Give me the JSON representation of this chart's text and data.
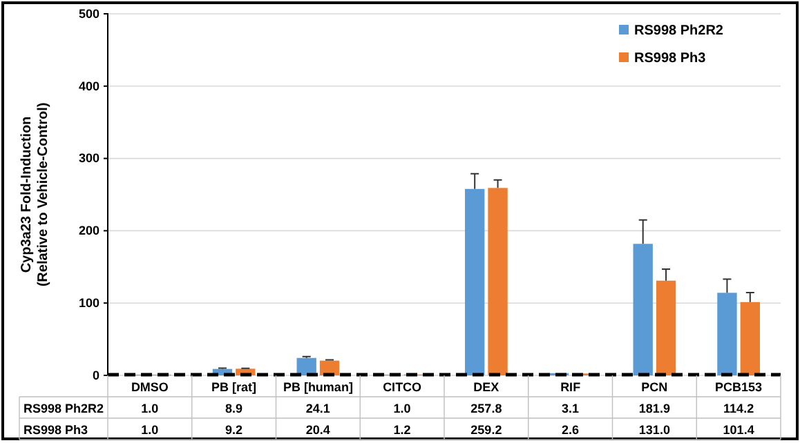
{
  "chart_data": {
    "type": "bar",
    "ylabel": "Cyp3a23 Fold-Induction\n(Relative to Vehicle-Control)",
    "categories": [
      "DMSO",
      "PB [rat]",
      "PB [human]",
      "CITCO",
      "DEX",
      "RIF",
      "PCN",
      "PCB153"
    ],
    "series": [
      {
        "name": "RS998 Ph2R2",
        "color": "#5b9bd5",
        "values": [
          1.0,
          8.9,
          24.1,
          1.0,
          257.8,
          3.1,
          181.9,
          114.2
        ],
        "errors": [
          null,
          1,
          2,
          null,
          21,
          null,
          33,
          19
        ],
        "value_labels": [
          "1.0",
          "8.9",
          "24.1",
          "1.0",
          "257.8",
          "3.1",
          "181.9",
          "114.2"
        ]
      },
      {
        "name": "RS998 Ph3",
        "color": "#ed7d31",
        "values": [
          1.0,
          9.2,
          20.4,
          1.2,
          259.2,
          2.6,
          131.0,
          101.4
        ],
        "errors": [
          null,
          0.6,
          1,
          null,
          11,
          null,
          16,
          13
        ],
        "value_labels": [
          "1.0",
          "9.2",
          "20.4",
          "1.2",
          "259.2",
          "2.6",
          "131.0",
          "101.4"
        ]
      }
    ],
    "ylim": [
      0,
      500
    ],
    "yticks": [
      0,
      100,
      200,
      300,
      400,
      500
    ],
    "grid": "y",
    "legend": "top right",
    "ref_lines": [
      {
        "axis": "y",
        "value": 1,
        "color": "#000000",
        "line_style": "dashed"
      }
    ]
  }
}
